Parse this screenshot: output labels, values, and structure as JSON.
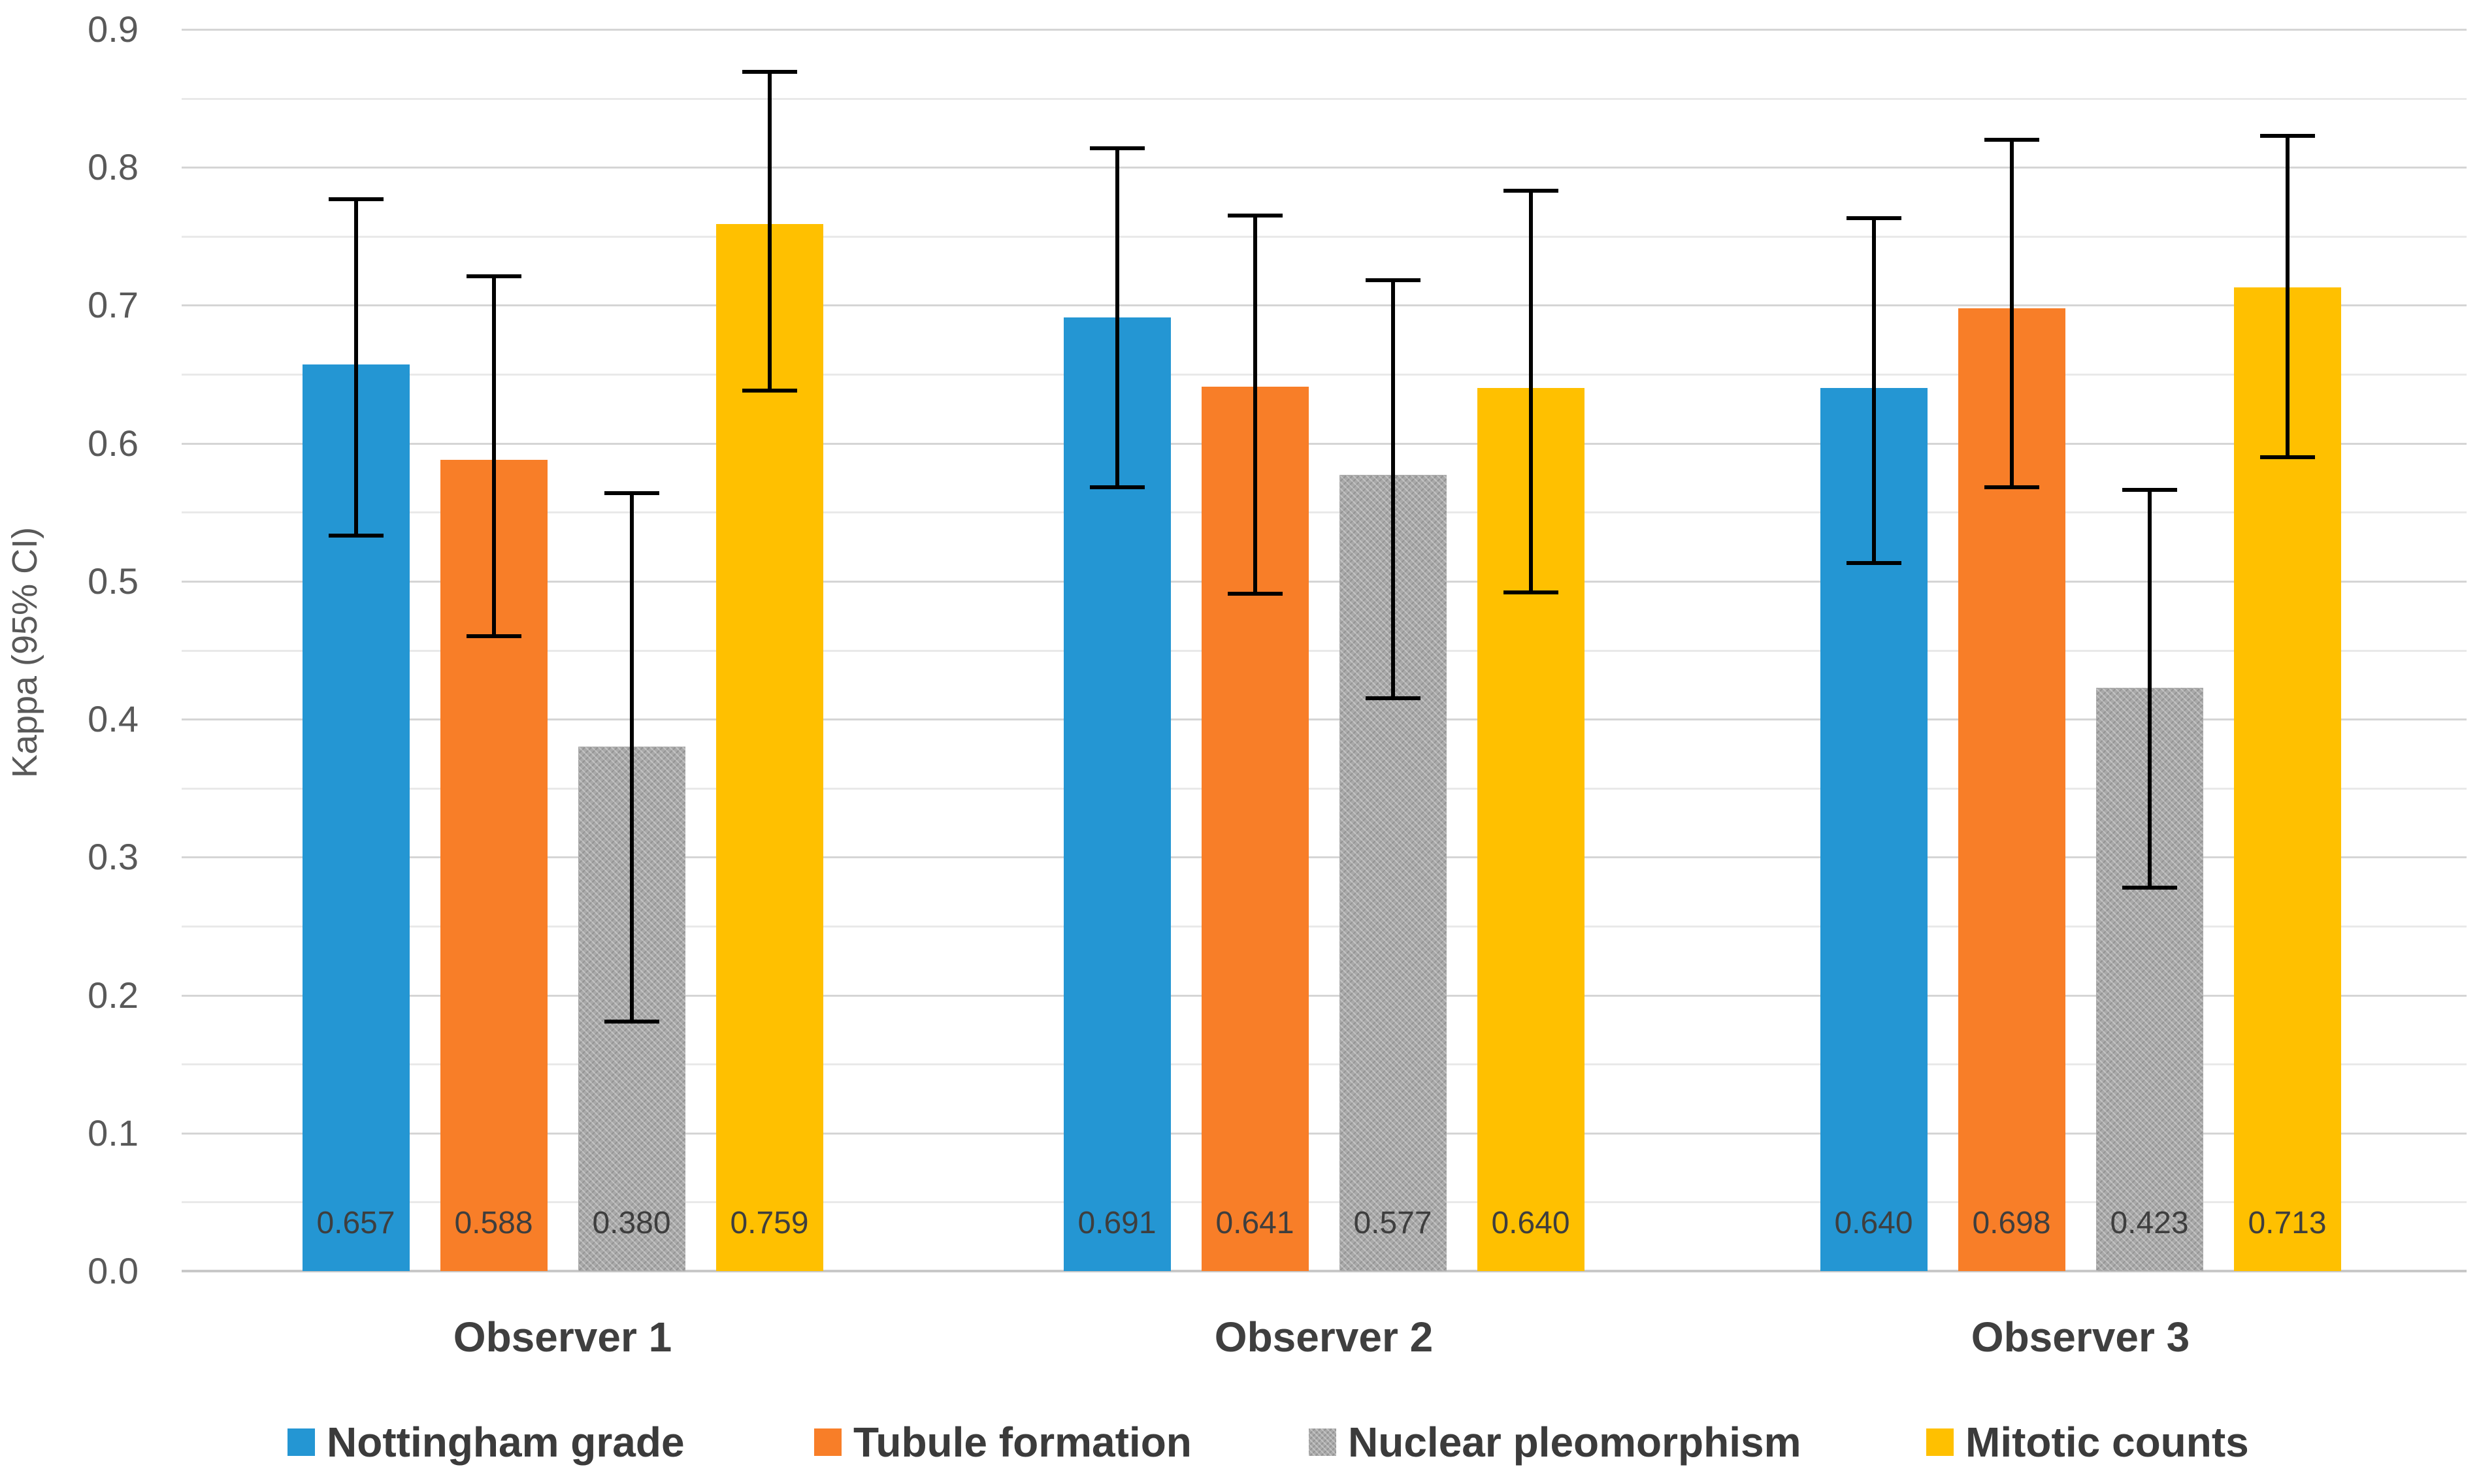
{
  "chart_data": {
    "type": "bar",
    "title": "",
    "xlabel": "",
    "ylabel": "Kappa (95% CI)",
    "ylim": [
      0.0,
      0.9
    ],
    "ytick_step": 0.1,
    "minor_gridline_step": 0.05,
    "yticks": [
      "0.0",
      "0.1",
      "0.2",
      "0.3",
      "0.4",
      "0.5",
      "0.6",
      "0.7",
      "0.8",
      "0.9"
    ],
    "grid": true,
    "legend_position": "bottom",
    "error_bars": "95% confidence intervals",
    "categories": [
      "Observer 1",
      "Observer 2",
      "Observer 3"
    ],
    "series": [
      {
        "name": "Nottingham grade",
        "color": "#2496d3",
        "pattern": false,
        "values": [
          0.657,
          0.691,
          0.64
        ],
        "ci_low": [
          0.533,
          0.568,
          0.513
        ],
        "ci_high": [
          0.777,
          0.814,
          0.763
        ]
      },
      {
        "name": "Tubule formation",
        "color": "#f87e28",
        "pattern": false,
        "values": [
          0.588,
          0.641,
          0.698
        ],
        "ci_low": [
          0.46,
          0.491,
          0.568
        ],
        "ci_high": [
          0.721,
          0.765,
          0.82
        ]
      },
      {
        "name": "Nuclear pleomorphism",
        "color": "#a9a9a9",
        "pattern": true,
        "values": [
          0.38,
          0.577,
          0.423
        ],
        "ci_low": [
          0.181,
          0.415,
          0.278
        ],
        "ci_high": [
          0.564,
          0.718,
          0.566
        ]
      },
      {
        "name": "Mitotic counts",
        "color": "#ffc000",
        "pattern": false,
        "values": [
          0.759,
          0.64,
          0.713
        ],
        "ci_low": [
          0.638,
          0.492,
          0.59
        ],
        "ci_high": [
          0.869,
          0.783,
          0.823
        ]
      }
    ],
    "value_label_decimals": 3
  },
  "styles": {
    "background": "#ffffff",
    "gridline_minor": "#e9e9e9",
    "gridline_major": "#d5d5d5",
    "axis_line": "#c8c8c8",
    "tick_label_color": "#595959",
    "axis_title_color": "#595959",
    "value_label_color": "#3e3e3e",
    "category_label_color": "#3f3f3f",
    "legend_text_color": "#3b3b3b",
    "error_bar_color": "#000000"
  }
}
